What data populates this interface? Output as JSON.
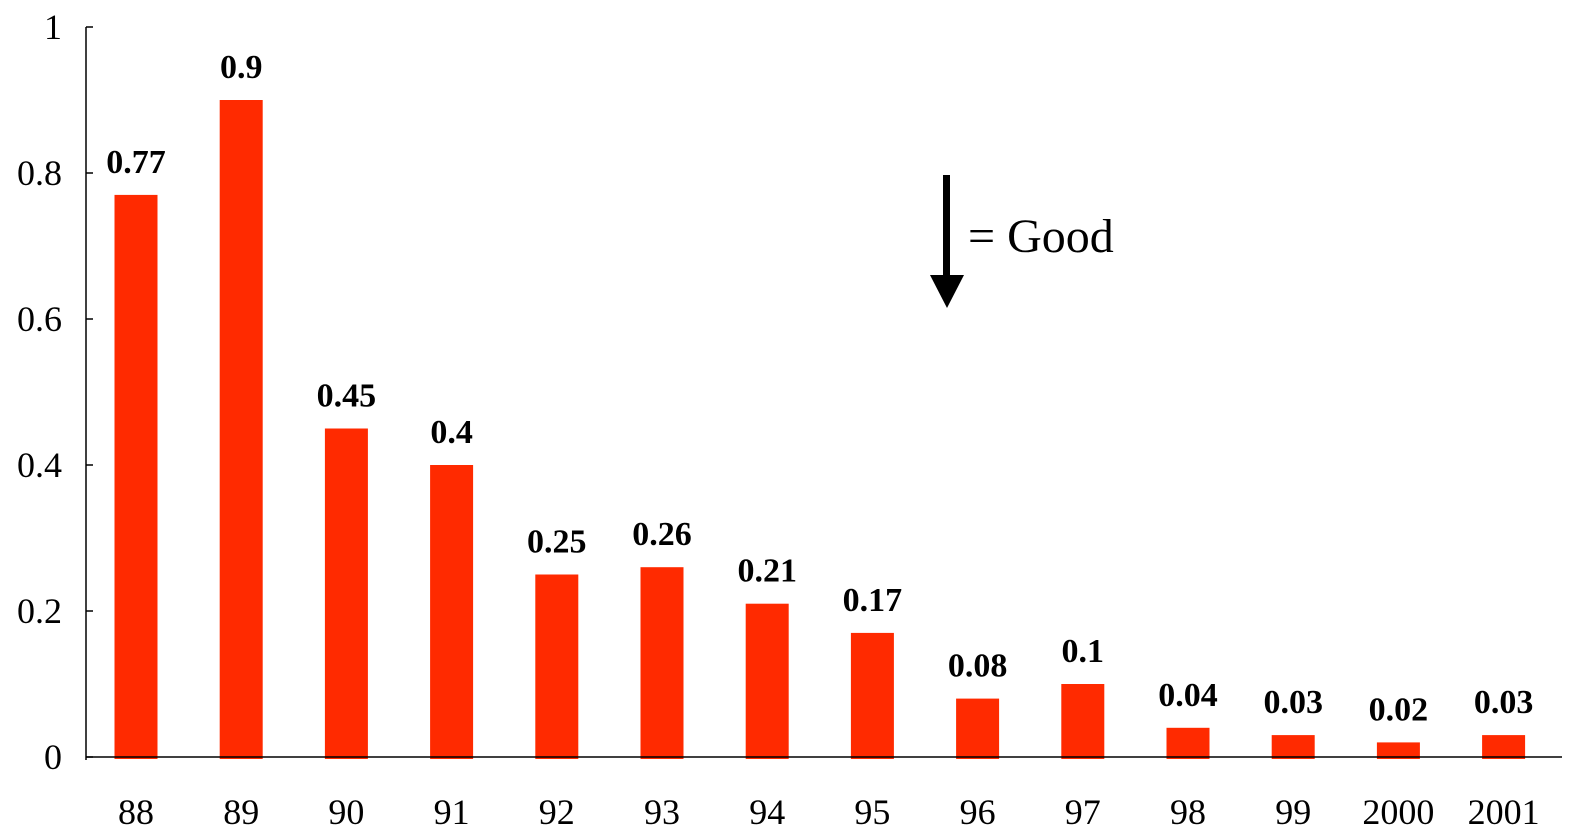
{
  "chart_data": {
    "type": "bar",
    "categories": [
      "88",
      "89",
      "90",
      "91",
      "92",
      "93",
      "94",
      "95",
      "96",
      "97",
      "98",
      "99",
      "2000",
      "2001"
    ],
    "values": [
      0.77,
      0.9,
      0.45,
      0.4,
      0.25,
      0.26,
      0.21,
      0.17,
      0.08,
      0.1,
      0.04,
      0.03,
      0.02,
      0.03
    ],
    "data_labels": [
      "0.77",
      "0.9",
      "0.45",
      "0.4",
      "0.25",
      "0.26",
      "0.21",
      "0.17",
      "0.08",
      "0.1",
      "0.04",
      "0.03",
      "0.02",
      "0.03"
    ],
    "y_ticks": [
      "0",
      "0.2",
      "0.4",
      "0.6",
      "0.8",
      "1"
    ],
    "ylim": [
      0,
      1
    ],
    "title": "",
    "xlabel": "",
    "ylabel": "",
    "grid": false,
    "legend": "none",
    "bar_color": "#ff2a00",
    "annotation": {
      "text": "= Good",
      "arrow_direction": "down",
      "icon": "down-arrow-icon"
    }
  }
}
